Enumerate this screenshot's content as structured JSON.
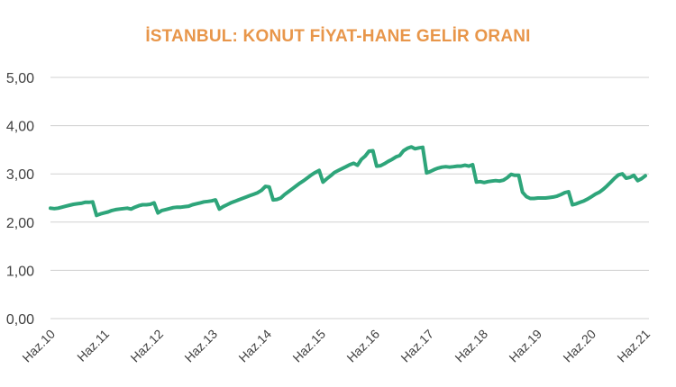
{
  "chart_data": {
    "type": "line",
    "title": "İSTANBUL: KONUT FİYAT-HANE GELİR ORANI",
    "xlabel": "",
    "ylabel": "",
    "ylim": [
      0,
      5
    ],
    "yticks": [
      "0,00",
      "1,00",
      "2,00",
      "3,00",
      "4,00",
      "5,00"
    ],
    "xticks": [
      "Haz.10",
      "Haz.11",
      "Haz.12",
      "Haz.13",
      "Haz.14",
      "Haz.15",
      "Haz.16",
      "Haz.17",
      "Haz.18",
      "Haz.19",
      "Haz.20",
      "Haz.21"
    ],
    "grid": "horizontal",
    "legend": "none",
    "line_color": "#2EA57A",
    "series": [
      {
        "name": "Konut Fiyat / Hane Gelir Oranı",
        "x_start": "Haz.10",
        "frequency": "monthly",
        "values": [
          2.29,
          2.28,
          2.29,
          2.31,
          2.33,
          2.35,
          2.37,
          2.38,
          2.39,
          2.41,
          2.41,
          2.42,
          2.14,
          2.17,
          2.19,
          2.21,
          2.24,
          2.26,
          2.27,
          2.28,
          2.29,
          2.27,
          2.31,
          2.34,
          2.36,
          2.36,
          2.37,
          2.4,
          2.19,
          2.24,
          2.26,
          2.28,
          2.3,
          2.31,
          2.31,
          2.32,
          2.33,
          2.36,
          2.38,
          2.4,
          2.42,
          2.43,
          2.44,
          2.46,
          2.27,
          2.32,
          2.36,
          2.4,
          2.43,
          2.46,
          2.49,
          2.52,
          2.55,
          2.58,
          2.61,
          2.66,
          2.74,
          2.73,
          2.46,
          2.47,
          2.5,
          2.57,
          2.63,
          2.69,
          2.75,
          2.81,
          2.86,
          2.92,
          2.98,
          3.03,
          3.07,
          2.83,
          2.9,
          2.96,
          3.03,
          3.07,
          3.11,
          3.15,
          3.19,
          3.22,
          3.18,
          3.3,
          3.37,
          3.47,
          3.48,
          3.16,
          3.17,
          3.21,
          3.26,
          3.3,
          3.35,
          3.38,
          3.48,
          3.53,
          3.56,
          3.52,
          3.54,
          3.55,
          3.02,
          3.05,
          3.09,
          3.12,
          3.14,
          3.15,
          3.14,
          3.15,
          3.16,
          3.16,
          3.18,
          3.16,
          3.19,
          2.83,
          2.84,
          2.82,
          2.84,
          2.85,
          2.86,
          2.85,
          2.87,
          2.92,
          2.99,
          2.97,
          2.97,
          2.62,
          2.53,
          2.49,
          2.49,
          2.5,
          2.5,
          2.5,
          2.51,
          2.52,
          2.54,
          2.57,
          2.61,
          2.63,
          2.36,
          2.38,
          2.41,
          2.44,
          2.48,
          2.53,
          2.58,
          2.62,
          2.68,
          2.75,
          2.83,
          2.91,
          2.98,
          3.0,
          2.91,
          2.93,
          2.97,
          2.86,
          2.9,
          2.96
        ]
      }
    ]
  }
}
